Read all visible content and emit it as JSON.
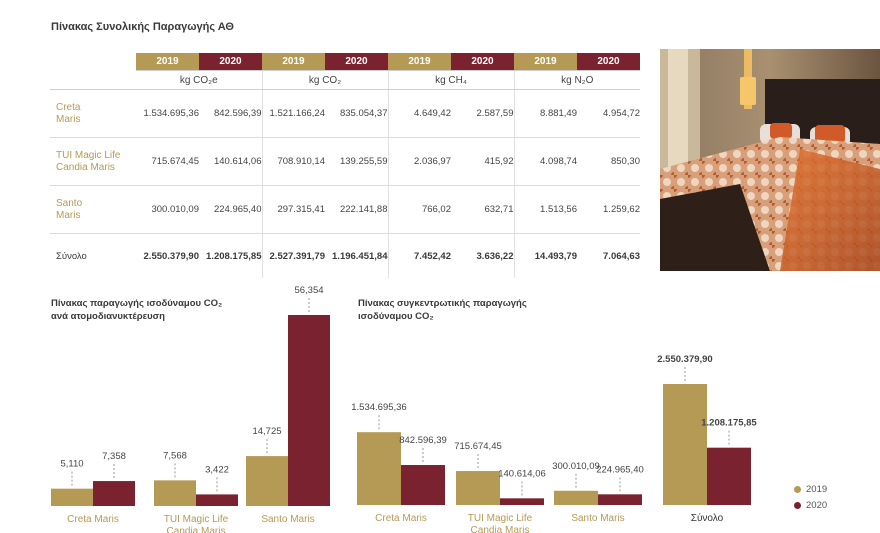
{
  "title": "Πίνακας Συνολικής Παραγωγής ΑΘ",
  "colors": {
    "y2019": "#b59a55",
    "y2020": "#7b2231"
  },
  "table": {
    "years": [
      "2019",
      "2020"
    ],
    "units": [
      "kg CO₂e",
      "kg CO₂",
      "kg CH₄",
      "kg N₂O"
    ],
    "rows": [
      {
        "label": "Creta\nMaris",
        "values": [
          "1.534.695,36",
          "842.596,39",
          "1.521.166,24",
          "835.054,37",
          "4.649,42",
          "2.587,59",
          "8.881,49",
          "4.954,72"
        ]
      },
      {
        "label": "TUI Magic Life\nCandia Maris",
        "values": [
          "715.674,45",
          "140.614,06",
          "708.910,14",
          "139.255,59",
          "2.036,97",
          "415,92",
          "4.098,74",
          "850,30"
        ]
      },
      {
        "label": "Santo\nMaris",
        "values": [
          "300.010,09",
          "224.965,40",
          "297.315,41",
          "222.141,88",
          "766,02",
          "632,71",
          "1.513,56",
          "1.259,62"
        ]
      }
    ],
    "total": {
      "label": "Σύνολο",
      "values": [
        "2.550.379,90",
        "1.208.175,85",
        "2.527.391,79",
        "1.196.451,84",
        "7.452,42",
        "3.636,22",
        "14.493,79",
        "7.064,63"
      ]
    }
  },
  "chart1_title": "Πίνακας παραγωγής ισοδύναμου CO₂\nανά ατομοδιανυκτέρευση",
  "chart2_title": "Πίνακας συγκεντρωτικής παραγωγής\nισοδύναμου CO₂",
  "legend": [
    "2019",
    "2020"
  ],
  "chart_data": [
    {
      "type": "bar",
      "title": "Πίνακας παραγωγής ισοδύναμου CO₂ ανά ατομοδιανυκτέρευση",
      "categories": [
        "Creta Maris",
        "TUI Magic Life Candia Maris",
        "Santo Maris"
      ],
      "series": [
        {
          "name": "2019",
          "values": [
            5.11,
            7.568,
            14.725
          ],
          "labels": [
            "5,110",
            "7,568",
            "14,725"
          ]
        },
        {
          "name": "2020",
          "values": [
            7.358,
            3.422,
            56.354
          ],
          "labels": [
            "7,358",
            "3,422",
            "56,354"
          ]
        }
      ],
      "ylim": [
        0,
        60
      ]
    },
    {
      "type": "bar",
      "title": "Πίνακας συγκεντρωτικής παραγωγής ισοδύναμου CO₂",
      "categories": [
        "Creta Maris",
        "TUI Magic Life Candia Maris",
        "Santo Maris",
        "Σύνολο"
      ],
      "series": [
        {
          "name": "2019",
          "values": [
            1534695.36,
            715674.45,
            300010.09,
            2550379.9
          ],
          "labels": [
            "1.534.695,36",
            "715.674,45",
            "300.010,09",
            "2.550.379,90"
          ]
        },
        {
          "name": "2020",
          "values": [
            842596.39,
            140614.06,
            224965.4,
            1208175.85
          ],
          "labels": [
            "842.596,39",
            "140.614,06",
            "224.965,40",
            "1.208.175,85"
          ]
        }
      ],
      "ylim": [
        0,
        2800000
      ]
    }
  ]
}
